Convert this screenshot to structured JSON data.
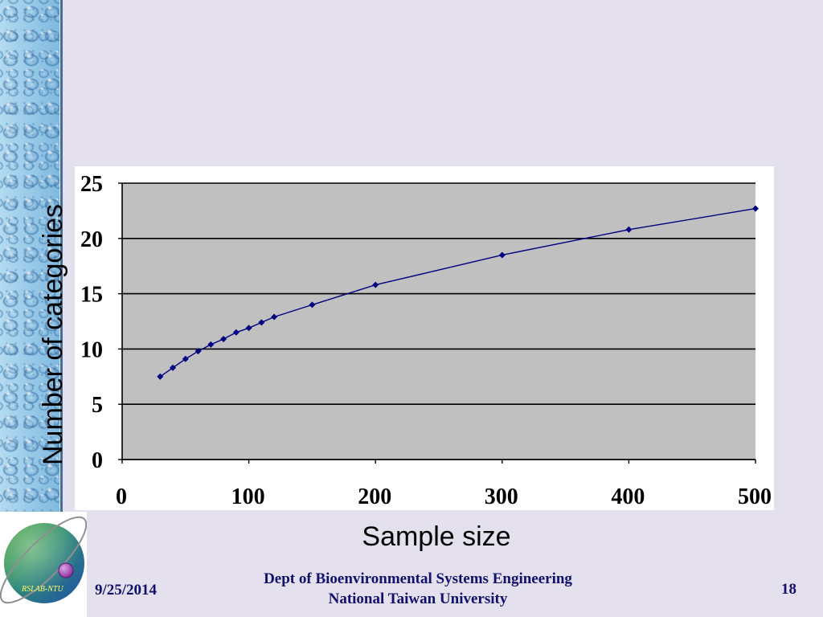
{
  "footer": {
    "date": "9/25/2014",
    "department": "Dept of Bioenvironmental Systems Engineering",
    "university": "National Taiwan University",
    "page_number": "18"
  },
  "logo": {
    "text": "RSLAB-NTU"
  },
  "colors": {
    "slide_background": "#E5E0ED",
    "chart_background": "#FFFFFF",
    "plot_area": "#C0C0C0",
    "gridline": "#000000",
    "series_line": "#000080",
    "footer_text": "#10106E",
    "logo_green": "#3C9A3C",
    "logo_blue": "#1E4FA6",
    "logo_dot": "#8B2C9C",
    "logo_text": "#FFFF66"
  },
  "chart_data": {
    "type": "line",
    "xlabel": "Sample size",
    "ylabel": "Number of categories",
    "x": [
      30,
      40,
      50,
      60,
      70,
      80,
      90,
      100,
      110,
      120,
      150,
      200,
      300,
      400,
      500
    ],
    "series": [
      {
        "values": [
          7.5,
          8.3,
          9.1,
          9.8,
          10.4,
          10.9,
          11.5,
          11.9,
          12.4,
          12.9,
          14.0,
          15.8,
          18.5,
          20.8,
          22.7
        ]
      }
    ],
    "xlim": [
      0,
      500
    ],
    "ylim": [
      0,
      25
    ],
    "xticks": [
      0,
      100,
      200,
      300,
      400,
      500
    ],
    "yticks": [
      0,
      5,
      10,
      15,
      20,
      25
    ],
    "grid": {
      "horizontal": true,
      "vertical": false
    },
    "legend": "none"
  }
}
